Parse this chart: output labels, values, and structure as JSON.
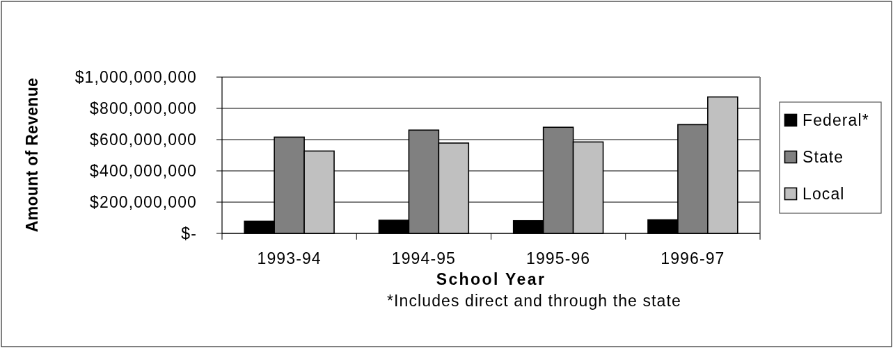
{
  "chart_data": {
    "type": "bar",
    "xlabel": "School Year",
    "ylabel": "Amount of Revenue",
    "annotations": [
      "*Includes direct and through the state"
    ],
    "categories": [
      "1993-94",
      "1994-95",
      "1995-96",
      "1996-97"
    ],
    "series": [
      {
        "name": "Federal*",
        "color": "#000000",
        "values": [
          78000000,
          84000000,
          81000000,
          87000000
        ]
      },
      {
        "name": "State",
        "color": "#808080",
        "values": [
          616000000,
          661000000,
          679000000,
          696000000
        ]
      },
      {
        "name": "Local",
        "color": "#c0c0c0",
        "values": [
          527000000,
          578000000,
          585000000,
          873000000
        ]
      }
    ],
    "ylim": [
      0,
      1000000000
    ],
    "yticks": [
      {
        "value": 0,
        "label": "$-"
      },
      {
        "value": 200000000,
        "label": "$200,000,000"
      },
      {
        "value": 400000000,
        "label": "$400,000,000"
      },
      {
        "value": 600000000,
        "label": "$600,000,000"
      },
      {
        "value": 800000000,
        "label": "$800,000,000"
      },
      {
        "value": 1000000000,
        "label": "$1,000,000,000"
      }
    ],
    "grid": "y",
    "legend": "right"
  }
}
